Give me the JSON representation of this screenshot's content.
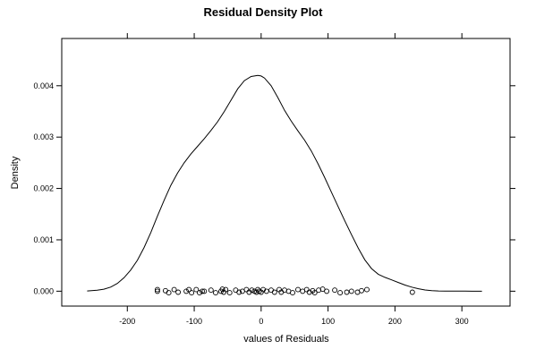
{
  "chart_data": {
    "type": "line",
    "title": "Residual Density Plot",
    "xlabel": "values of Residuals",
    "ylabel": "Density",
    "xlim": [
      -298,
      372
    ],
    "ylim": [
      -0.00029,
      0.00492
    ],
    "x_ticks": [
      -200,
      -100,
      0,
      100,
      200,
      300
    ],
    "x_tick_labels": [
      "-200",
      "-100",
      "0",
      "100",
      "200",
      "300"
    ],
    "y_ticks": [
      0.0,
      0.001,
      0.002,
      0.003,
      0.004
    ],
    "y_tick_labels": [
      "0.000",
      "0.001",
      "0.002",
      "0.003",
      "0.004"
    ],
    "grid": false,
    "series": [
      {
        "x": [
          -260,
          -245,
          -235,
          -225,
          -215,
          -205,
          -195,
          -185,
          -175,
          -165,
          -155,
          -145,
          -135,
          -125,
          -115,
          -105,
          -95,
          -85,
          -75,
          -65,
          -55,
          -45,
          -35,
          -25,
          -15,
          -5,
          0,
          5,
          15,
          25,
          35,
          45,
          55,
          65,
          75,
          85,
          95,
          105,
          115,
          125,
          135,
          145,
          155,
          165,
          175,
          185,
          195,
          205,
          215,
          225,
          235,
          245,
          255,
          265,
          275,
          285,
          295,
          305,
          315,
          330
        ],
        "y": [
          4e-06,
          1.8e-05,
          4e-05,
          8e-05,
          0.00015,
          0.00026,
          0.00041,
          0.0006,
          0.00085,
          0.00114,
          0.00146,
          0.00177,
          0.00206,
          0.0023,
          0.0025,
          0.00267,
          0.00282,
          0.00297,
          0.00313,
          0.0033,
          0.0035,
          0.00372,
          0.00394,
          0.0041,
          0.00418,
          0.0042,
          0.00419,
          0.00415,
          0.004,
          0.00377,
          0.00352,
          0.00331,
          0.00312,
          0.00294,
          0.00273,
          0.00248,
          0.00221,
          0.00193,
          0.00165,
          0.00137,
          0.0011,
          0.00084,
          0.00061,
          0.00044,
          0.00033,
          0.00027,
          0.00022,
          0.00017,
          0.00012,
          8e-05,
          4.8e-05,
          2.4e-05,
          1.1e-05,
          5e-06,
          2e-06,
          1e-06,
          5e-07,
          2e-07,
          1e-07,
          0.0
        ]
      }
    ],
    "rug": {
      "marker": "circle",
      "points": [
        [
          -155,
          0.0
        ],
        [
          -155,
          3e-05
        ],
        [
          -143,
          1e-05
        ],
        [
          -138,
          -3e-05
        ],
        [
          -130,
          3e-05
        ],
        [
          -124,
          -2e-05
        ],
        [
          -112,
          0.0
        ],
        [
          -108,
          3e-05
        ],
        [
          -104,
          -3e-05
        ],
        [
          -97,
          3e-05
        ],
        [
          -92,
          -3e-05
        ],
        [
          -88,
          0.0
        ],
        [
          -85,
          0.0
        ],
        [
          -75,
          2e-05
        ],
        [
          -68,
          -3e-05
        ],
        [
          -60,
          0.0
        ],
        [
          -58,
          4e-05
        ],
        [
          -56,
          -2e-05
        ],
        [
          -53,
          3e-05
        ],
        [
          -47,
          -3e-05
        ],
        [
          -38,
          2e-05
        ],
        [
          -33,
          -2e-05
        ],
        [
          -28,
          0.0
        ],
        [
          -22,
          3e-05
        ],
        [
          -18,
          -2e-05
        ],
        [
          -14,
          2e-05
        ],
        [
          -10,
          0.0
        ],
        [
          -7,
          -2e-05
        ],
        [
          -5,
          3e-05
        ],
        [
          -3,
          0.0
        ],
        [
          0,
          -2e-05
        ],
        [
          3,
          3e-05
        ],
        [
          8,
          0.0
        ],
        [
          15,
          2e-05
        ],
        [
          20,
          -2e-05
        ],
        [
          27,
          3e-05
        ],
        [
          30,
          -2e-05
        ],
        [
          35,
          2e-05
        ],
        [
          41,
          0.0
        ],
        [
          47,
          -3e-05
        ],
        [
          55,
          3e-05
        ],
        [
          62,
          0.0
        ],
        [
          68,
          3e-05
        ],
        [
          72,
          -2e-05
        ],
        [
          77,
          1e-05
        ],
        [
          80,
          -3e-05
        ],
        [
          86,
          2e-05
        ],
        [
          92,
          4e-05
        ],
        [
          98,
          0.0
        ],
        [
          110,
          2e-05
        ],
        [
          118,
          -3e-05
        ],
        [
          128,
          -2e-05
        ],
        [
          135,
          0.0
        ],
        [
          144,
          -2e-05
        ],
        [
          150,
          1e-05
        ],
        [
          158,
          3e-05
        ],
        [
          226,
          -2e-05
        ]
      ]
    }
  }
}
